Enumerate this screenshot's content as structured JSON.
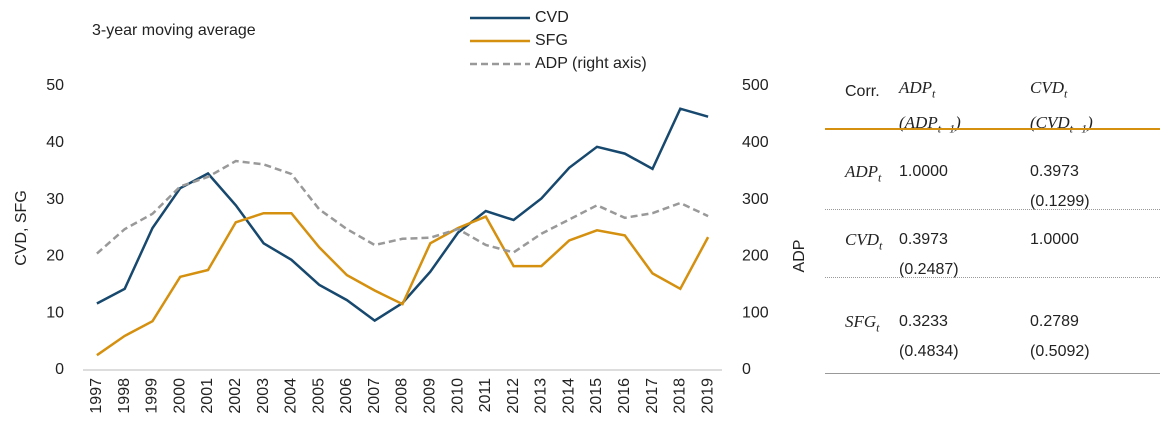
{
  "chart_data": {
    "type": "line",
    "annotation": "3-year moving average",
    "ylabel": "CVD, SFG",
    "y2label": "ADP",
    "categories": [
      "1997",
      "1998",
      "1999",
      "2000",
      "2001",
      "2002",
      "2003",
      "2004",
      "2005",
      "2006",
      "2007",
      "2008",
      "2009",
      "2010",
      "2011",
      "2012",
      "2013",
      "2014",
      "2015",
      "2016",
      "2017",
      "2018",
      "2019"
    ],
    "series": [
      {
        "name": "CVD",
        "color": "#17486e",
        "line_style": "solid",
        "values": [
          11.7,
          14.3,
          25,
          32,
          34.6,
          29,
          22.3,
          19.4,
          15,
          12.3,
          8.7,
          11.8,
          17.3,
          24.2,
          28,
          26.4,
          30.2,
          35.6,
          39.3,
          38.1,
          35.4,
          46,
          44.6
        ]
      },
      {
        "name": "SFG",
        "color": "#d4900e",
        "line_style": "solid",
        "values": [
          2.6,
          6,
          8.6,
          16.4,
          17.6,
          26,
          27.6,
          27.6,
          21.6,
          16.7,
          14,
          11.6,
          22.3,
          25,
          27,
          18.3,
          18.3,
          22.8,
          24.6,
          23.7,
          17,
          14.3,
          23.4
        ]
      },
      {
        "name": "ADP (right axis)",
        "color": "#999999",
        "line_style": "dashed",
        "axis": "y2",
        "values": [
          205,
          248,
          275,
          323,
          340,
          368,
          362,
          345,
          283,
          248,
          220,
          231,
          233,
          248,
          220,
          207,
          240,
          265,
          290,
          268,
          276,
          294,
          271
        ]
      }
    ],
    "ylim": [
      0,
      50
    ],
    "yticks": [
      0,
      10,
      20,
      30,
      40,
      50
    ],
    "y2lim": [
      0,
      500
    ],
    "y2ticks": [
      0,
      100,
      200,
      300,
      400,
      500
    ],
    "grid": false,
    "legend": "top"
  },
  "table": {
    "header": [
      "Corr.",
      {
        "v": "ADP",
        "s": "t",
        "lag": {
          "v": "(ADP",
          "s": "t−1",
          "after": ")"
        }
      },
      {
        "v": "CVD",
        "s": "t",
        "lag": {
          "v": "(CVD",
          "s": "t−1",
          "after": ")"
        }
      }
    ],
    "rows": [
      {
        "label": {
          "v": "ADP",
          "s": "t"
        },
        "cells": [
          [
            "1.0000"
          ],
          [
            "0.3973",
            "(0.1299)"
          ]
        ]
      },
      {
        "label": {
          "v": "CVD",
          "s": "t"
        },
        "cells": [
          [
            "0.3973",
            "(0.2487)"
          ],
          [
            "1.0000"
          ]
        ]
      },
      {
        "label": {
          "v": "SFG",
          "s": "t"
        },
        "cells": [
          [
            "0.3233",
            "(0.4834)"
          ],
          [
            "0.2789",
            "(0.5092)"
          ]
        ]
      }
    ]
  }
}
